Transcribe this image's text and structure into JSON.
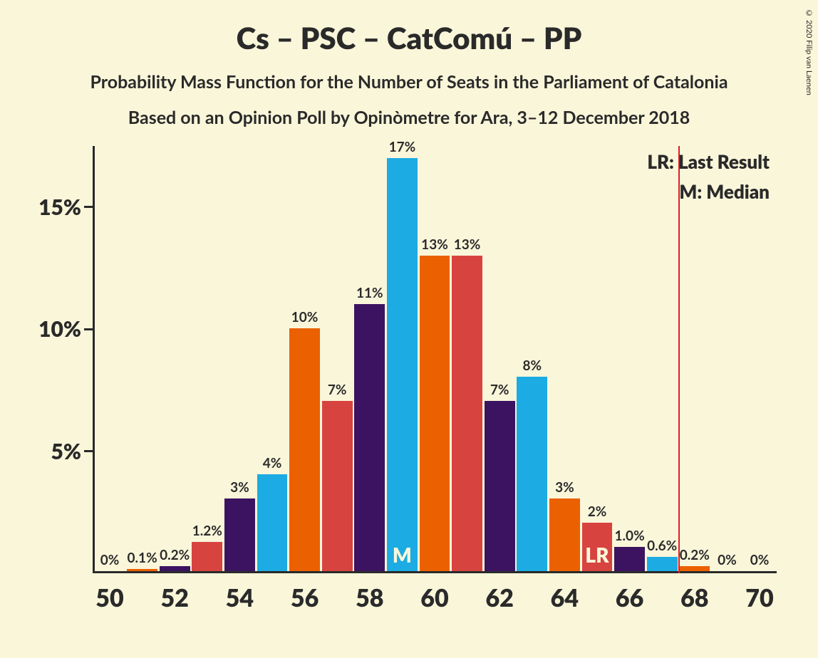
{
  "title": "Cs – PSC – CatComú – PP",
  "title_fontsize": 42,
  "subtitle1": "Probability Mass Function for the Number of Seats in the Parliament of Catalonia",
  "subtitle2": "Based on an Opinion Poll by Opinòmetre for Ara, 3–12 December 2018",
  "subtitle_fontsize": 25,
  "copyright": "© 2020 Filip van Laenen",
  "background_color": "#faf6da",
  "text_color": "#2a2a2a",
  "legend_lr": "LR: Last Result",
  "legend_m": "M: Median",
  "chart": {
    "type": "bar",
    "y_axis": {
      "ylim_max_pct": 17.5,
      "ticks": [
        {
          "v": 5,
          "label": "5%"
        },
        {
          "v": 10,
          "label": "10%"
        },
        {
          "v": 15,
          "label": "15%"
        }
      ]
    },
    "x_axis": {
      "min": 50,
      "max": 70,
      "labels": [
        "50",
        "52",
        "54",
        "56",
        "58",
        "60",
        "62",
        "64",
        "66",
        "68",
        "70"
      ]
    },
    "lr_position": 67.5,
    "median_index": 9,
    "lr_index": 15,
    "bar_colors": {
      "blue": "#1cabe2",
      "orange": "#eb6101",
      "red": "#d7443f",
      "purple": "#3c1361"
    },
    "bars": [
      {
        "x": 50,
        "v": 0,
        "label": "0%",
        "color": "blue"
      },
      {
        "x": 51,
        "v": 0.1,
        "label": "0.1%",
        "color": "orange"
      },
      {
        "x": 52,
        "v": 0.2,
        "label": "0.2%",
        "color": "purple"
      },
      {
        "x": 53,
        "v": 1.2,
        "label": "1.2%",
        "color": "red"
      },
      {
        "x": 54,
        "v": 3,
        "label": "3%",
        "color": "purple"
      },
      {
        "x": 55,
        "v": 4,
        "label": "4%",
        "color": "blue"
      },
      {
        "x": 56,
        "v": 10,
        "label": "10%",
        "color": "orange"
      },
      {
        "x": 57,
        "v": 7,
        "label": "7%",
        "color": "red"
      },
      {
        "x": 58,
        "v": 11,
        "label": "11%",
        "color": "purple"
      },
      {
        "x": 59,
        "v": 17,
        "label": "17%",
        "color": "blue",
        "inner": "M"
      },
      {
        "x": 60,
        "v": 13,
        "label": "13%",
        "color": "orange"
      },
      {
        "x": 61,
        "v": 13,
        "label": "13%",
        "color": "red"
      },
      {
        "x": 62,
        "v": 7,
        "label": "7%",
        "color": "purple"
      },
      {
        "x": 63,
        "v": 8,
        "label": "8%",
        "color": "blue"
      },
      {
        "x": 64,
        "v": 3,
        "label": "3%",
        "color": "orange"
      },
      {
        "x": 65,
        "v": 2,
        "label": "2%",
        "color": "red",
        "inner": "LR"
      },
      {
        "x": 66,
        "v": 1.0,
        "label": "1.0%",
        "color": "purple"
      },
      {
        "x": 67,
        "v": 0.6,
        "label": "0.6%",
        "color": "blue"
      },
      {
        "x": 68,
        "v": 0.2,
        "label": "0.2%",
        "color": "orange"
      },
      {
        "x": 69,
        "v": 0,
        "label": "0%",
        "color": "red"
      },
      {
        "x": 70,
        "v": 0,
        "label": "0%",
        "color": "purple"
      }
    ]
  }
}
